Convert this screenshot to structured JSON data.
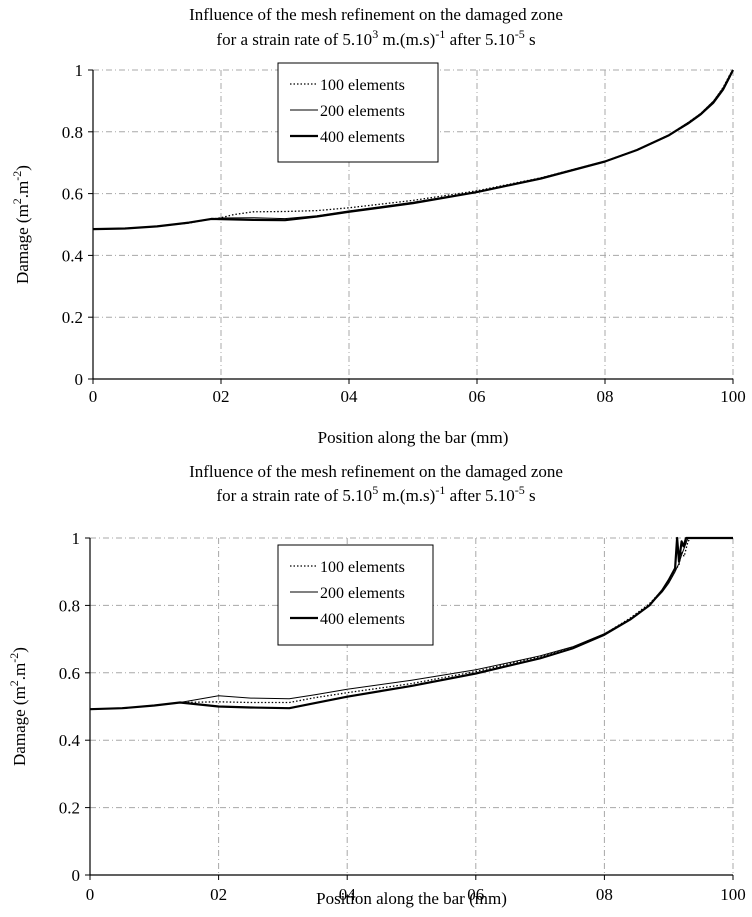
{
  "chart_data": [
    {
      "type": "line",
      "title_lines": [
        "Influence of the mesh refinement on the damaged zone",
        "for a strain rate of 5.10",
        "3",
        " m.(m.s)",
        "-1",
        " after 5.10",
        "-5",
        " s"
      ],
      "xlabel": "Position along the bar (mm)",
      "ylabel_parts": [
        "Damage (m",
        "2",
        ".m",
        "-2",
        ")"
      ],
      "x_ticks": [
        0,
        20,
        40,
        60,
        80,
        100
      ],
      "x_tick_labels": [
        "0",
        "02",
        "04",
        "06",
        "08",
        "100"
      ],
      "y_ticks": [
        0,
        0.2,
        0.4,
        0.6,
        0.8,
        1
      ],
      "y_tick_labels": [
        "0",
        "0.2",
        "0.4",
        "0.6",
        "0.8",
        "1"
      ],
      "xlim": [
        0,
        100
      ],
      "ylim": [
        0,
        1
      ],
      "grid": true,
      "legend_position": "upper-center",
      "series": [
        {
          "name": "100 elements",
          "style": "dotted",
          "x": [
            0,
            5,
            10,
            15,
            18.5,
            20,
            22,
            25,
            30,
            35,
            40,
            50,
            60,
            70,
            80,
            85,
            90,
            93,
            95,
            97,
            98.5,
            99.5,
            100
          ],
          "y": [
            0.485,
            0.487,
            0.494,
            0.505,
            0.517,
            0.522,
            0.532,
            0.541,
            0.542,
            0.545,
            0.554,
            0.578,
            0.609,
            0.651,
            0.705,
            0.742,
            0.79,
            0.83,
            0.86,
            0.9,
            0.945,
            0.985,
            1.0
          ]
        },
        {
          "name": "200 elements",
          "style": "thin",
          "x": [
            0,
            5,
            10,
            15,
            18.5,
            20,
            25,
            30,
            35,
            40,
            50,
            60,
            70,
            80,
            85,
            90,
            93,
            95,
            97,
            98.5,
            99.5,
            100
          ],
          "y": [
            0.485,
            0.487,
            0.494,
            0.506,
            0.518,
            0.521,
            0.522,
            0.519,
            0.528,
            0.544,
            0.572,
            0.606,
            0.65,
            0.704,
            0.74,
            0.788,
            0.825,
            0.855,
            0.893,
            0.935,
            0.975,
            1.0
          ]
        },
        {
          "name": "400 elements",
          "style": "thick",
          "x": [
            0,
            5,
            10,
            15,
            18.5,
            20,
            25,
            30,
            35,
            40,
            50,
            60,
            70,
            80,
            85,
            90,
            93,
            95,
            97,
            98.5,
            99.5,
            100
          ],
          "y": [
            0.485,
            0.487,
            0.494,
            0.506,
            0.518,
            0.517,
            0.515,
            0.514,
            0.526,
            0.541,
            0.569,
            0.605,
            0.649,
            0.704,
            0.741,
            0.789,
            0.828,
            0.858,
            0.898,
            0.94,
            0.98,
            1.0
          ]
        }
      ]
    },
    {
      "type": "line",
      "title_lines": [
        "Influence of the mesh refinement on the damaged zone",
        "for a strain rate of 5.10",
        "5",
        " m.(m.s)",
        "-1",
        " after 5.10",
        "-5",
        " s"
      ],
      "xlabel": "Position along the bar (mm)",
      "ylabel_parts": [
        "Damage (m",
        "2",
        ".m",
        "-2",
        ")"
      ],
      "x_ticks": [
        0,
        20,
        40,
        60,
        80,
        100
      ],
      "x_tick_labels": [
        "0",
        "02",
        "04",
        "06",
        "08",
        "100"
      ],
      "y_ticks": [
        0,
        0.2,
        0.4,
        0.6,
        0.8,
        1
      ],
      "y_tick_labels": [
        "0",
        "0.2",
        "0.4",
        "0.6",
        "0.8",
        "1"
      ],
      "xlim": [
        0,
        100
      ],
      "ylim": [
        0,
        1
      ],
      "grid": true,
      "legend_position": "upper-center",
      "series": [
        {
          "name": "100 elements",
          "style": "dotted",
          "x": [
            0,
            5,
            10,
            14,
            20,
            25,
            31,
            35,
            40,
            50,
            60,
            70,
            75,
            80,
            84,
            87,
            89,
            90,
            91,
            91.6,
            92,
            92.4,
            93,
            93.5,
            100
          ],
          "y": [
            0.492,
            0.495,
            0.503,
            0.512,
            0.514,
            0.512,
            0.512,
            0.526,
            0.541,
            0.568,
            0.604,
            0.648,
            0.675,
            0.715,
            0.762,
            0.805,
            0.845,
            0.87,
            0.905,
            0.92,
            0.96,
            0.945,
            0.99,
            1.0,
            1.0
          ]
        },
        {
          "name": "200 elements",
          "style": "thin",
          "x": [
            0,
            5,
            10,
            14,
            20,
            25,
            31,
            35,
            40,
            50,
            60,
            70,
            75,
            80,
            84,
            87,
            89,
            90,
            91,
            91.6,
            92,
            92.5,
            93,
            100
          ],
          "y": [
            0.492,
            0.495,
            0.503,
            0.512,
            0.532,
            0.525,
            0.523,
            0.535,
            0.551,
            0.578,
            0.609,
            0.65,
            0.677,
            0.716,
            0.76,
            0.8,
            0.84,
            0.866,
            0.9,
            0.925,
            0.95,
            0.975,
            1.0,
            1.0
          ]
        },
        {
          "name": "400 elements",
          "style": "thick",
          "x": [
            0,
            5,
            10,
            14,
            20,
            25,
            31,
            35,
            40,
            50,
            60,
            70,
            75,
            80,
            84,
            87,
            89,
            90,
            91,
            91.3,
            91.6,
            92,
            92.3,
            92.7,
            100
          ],
          "y": [
            0.492,
            0.495,
            0.503,
            0.512,
            0.5,
            0.497,
            0.495,
            0.51,
            0.529,
            0.561,
            0.598,
            0.643,
            0.672,
            0.713,
            0.758,
            0.8,
            0.845,
            0.875,
            0.91,
            1.0,
            0.93,
            0.99,
            0.975,
            1.0,
            1.0
          ]
        }
      ]
    }
  ]
}
